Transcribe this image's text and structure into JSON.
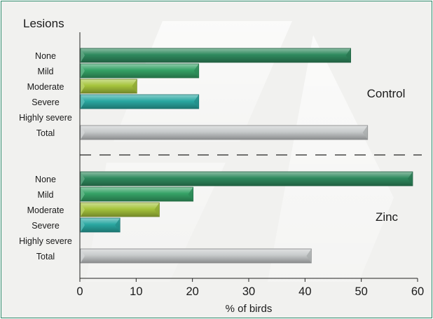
{
  "chart_data": {
    "type": "bar",
    "orientation": "horizontal",
    "title": "Lesions",
    "xlabel": "% of birds",
    "xlim": [
      0,
      60
    ],
    "xticks": [
      0,
      10,
      20,
      30,
      40,
      50,
      60
    ],
    "grid": false,
    "colors": {
      "None": "#2f8a5e",
      "Mild": "#35a266",
      "Moderate": "#a6c43c",
      "Severe": "#2aa8a2",
      "Highly severe": "#2aa8a2",
      "Total": "#c7cacb"
    },
    "groups": [
      {
        "name": "Control",
        "categories": [
          "None",
          "Mild",
          "Moderate",
          "Severe",
          "Highly severe",
          "Total"
        ],
        "values": [
          48,
          21,
          10,
          21,
          0,
          51
        ]
      },
      {
        "name": "Zinc",
        "categories": [
          "None",
          "Mild",
          "Moderate",
          "Severe",
          "Highly severe",
          "Total"
        ],
        "values": [
          59,
          20,
          14,
          7,
          0,
          41
        ]
      }
    ]
  }
}
